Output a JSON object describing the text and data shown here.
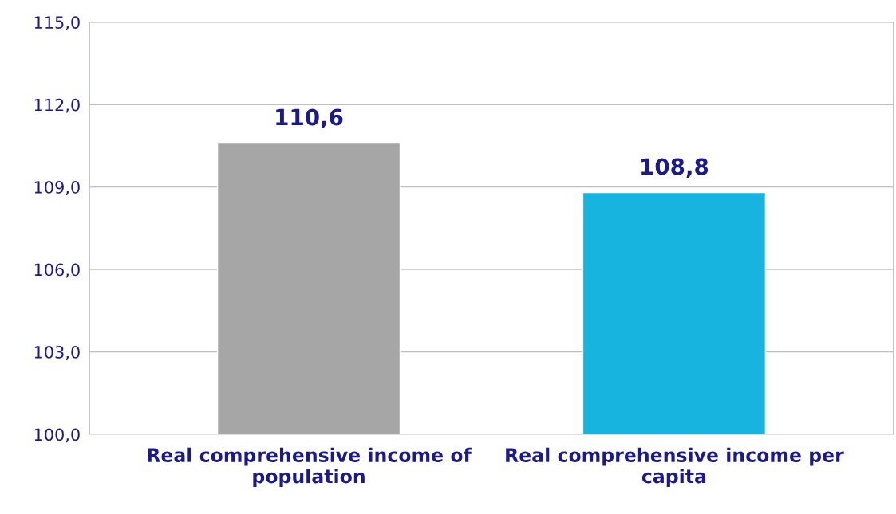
{
  "chart_data": {
    "type": "bar",
    "categories": [
      "Real comprehensive income of population",
      "Real comprehensive income per capita"
    ],
    "values": [
      110.6,
      108.8
    ],
    "colors": [
      "#a6a6a6",
      "#18b4e0"
    ],
    "value_labels": [
      "110,6",
      "108,8"
    ],
    "ylim": [
      100,
      115
    ],
    "yticks": [
      {
        "value": 100,
        "label": "100,0"
      },
      {
        "value": 103,
        "label": "103,0"
      },
      {
        "value": 106,
        "label": "106,0"
      },
      {
        "value": 109,
        "label": "109,0"
      },
      {
        "value": 112,
        "label": "112,0"
      },
      {
        "value": 115,
        "label": "115,0"
      }
    ],
    "grid": "y"
  }
}
